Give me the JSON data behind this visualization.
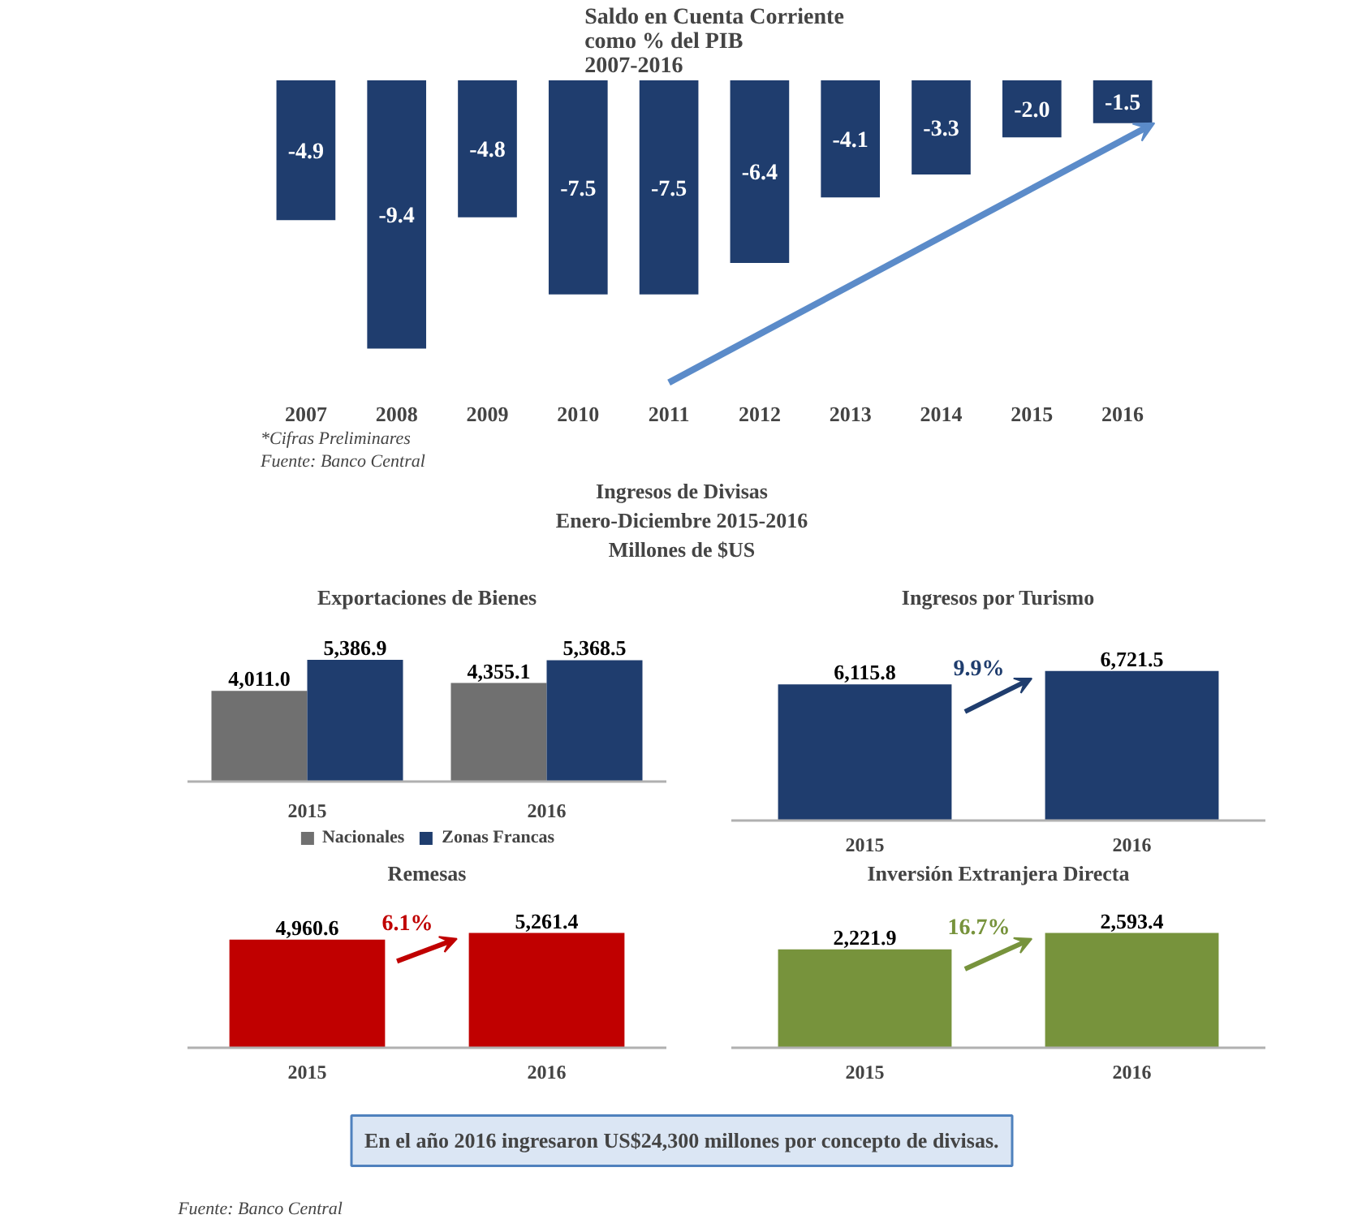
{
  "chart_data": [
    {
      "type": "bar",
      "title": "Saldo en Cuenta Corriente",
      "subtitle": "como % del PIB\n2007-2016",
      "categories": [
        "2007",
        "2008",
        "2009",
        "2010",
        "2011",
        "2012",
        "2013",
        "2014",
        "2015",
        "2016"
      ],
      "values": [
        -4.9,
        -9.4,
        -4.8,
        -7.5,
        -7.5,
        -6.4,
        -4.1,
        -3.3,
        -2.0,
        -1.5
      ],
      "value_labels": [
        "-4.9",
        "-9.4",
        "-4.8",
        "-7.5",
        "-7.5",
        "-6.4",
        "-4.1",
        "-3.3",
        "-2.0",
        "-1.5"
      ],
      "color": "#1f3d6e",
      "tick_labels": "x",
      "annotations": [
        "Fuente: Banco Central",
        "*Cifras Preliminares"
      ]
    },
    {
      "type": "other",
      "title": "Ingresos de Divisas",
      "subtitle": "Enero-Diciembre 2015-2016\nMillones de $US"
    },
    {
      "type": "bar",
      "title": "Exportaciones de Bienes",
      "categories": [
        "2015",
        "2016"
      ],
      "series": [
        {
          "name": "Nacionales",
          "color": "#707070",
          "values": [
            4011.0,
            4355.1
          ],
          "value_labels": [
            "4,011.0",
            "4,355.1"
          ]
        },
        {
          "name": "Zonas Francas",
          "color": "#1f3d6e",
          "values": [
            5386.9,
            5368.5
          ],
          "value_labels": [
            "5,386.9",
            "5,368.5"
          ]
        }
      ],
      "tick_labels": "x",
      "legend": "bottom"
    },
    {
      "type": "bar",
      "title": "Ingresos por Turismo",
      "categories": [
        "2015",
        "2016"
      ],
      "values": [
        6115.8,
        6721.5
      ],
      "value_labels": [
        "6,115.8",
        "6,721.5"
      ],
      "color": "#1f3d6e",
      "tick_labels": "x",
      "annotations": [
        "9.9%"
      ]
    },
    {
      "type": "bar",
      "title": "Remesas",
      "categories": [
        "2015",
        "2016"
      ],
      "values": [
        4960.6,
        5261.4
      ],
      "value_labels": [
        "4,960.6",
        "5,261.4"
      ],
      "color": "#c00000",
      "tick_labels": "x",
      "annotations": [
        "6.1%"
      ]
    },
    {
      "type": "bar",
      "title": "Inversión Extranjera Directa",
      "categories": [
        "2015",
        "2016"
      ],
      "values": [
        2221.9,
        2593.4
      ],
      "value_labels": [
        "2,221.9",
        "2,593.4"
      ],
      "color": "#77933c",
      "tick_labels": "x",
      "annotations": [
        "16.7%"
      ]
    },
    {
      "type": "other",
      "annotations": [
        "En el año 2016 ingresaron US$24,300 millones por concepto de divisas.",
        "Fuente: Banco Central"
      ]
    }
  ]
}
